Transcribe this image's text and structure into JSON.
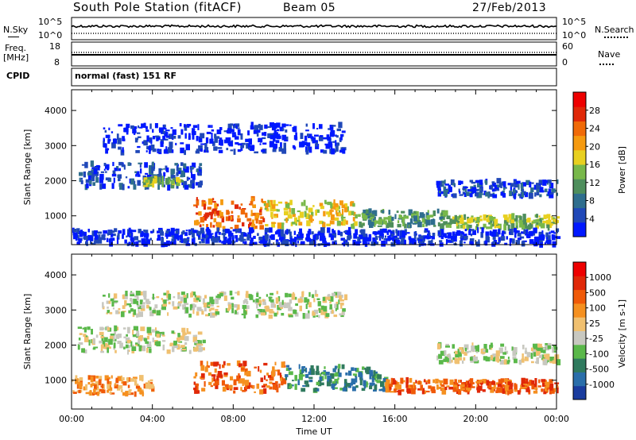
{
  "header": {
    "station": "South Pole Station (fitACF)",
    "beam": "Beam 05",
    "date": "27/Feb/2013"
  },
  "status_panels": {
    "nsky_label": "N.Sky",
    "nsky_ticks": [
      "10^5",
      "10^0"
    ],
    "nsearch_label": "N.Search",
    "nsearch_ticks": [
      "10^5",
      "10^0"
    ],
    "freq_label": "Freq.",
    "freq_unit": "[MHz]",
    "freq_ticks": [
      "18",
      "8"
    ],
    "nave_label": "Nave",
    "nave_ticks": [
      "60",
      "0"
    ],
    "cpid_label": "CPID",
    "cpid_text": "normal (fast) 151 RF"
  },
  "chart_data": [
    {
      "type": "heatmap",
      "panel": "power",
      "ylabel": "Slant Range [km]",
      "yticks": [
        "4000",
        "3000",
        "2000",
        "1000"
      ],
      "ylim": [
        180,
        4590
      ],
      "xlim_hours": [
        0,
        24
      ],
      "colorbar": {
        "label": "Power [dB]",
        "ticks": [
          "28",
          "24",
          "20",
          "16",
          "12",
          "8",
          "4"
        ],
        "range": [
          0,
          31
        ],
        "colors": [
          "#0018ff",
          "#2048b8",
          "#2f6e8e",
          "#4e8e5c",
          "#78b84a",
          "#e8d020",
          "#f59a10",
          "#f06a08",
          "#e02808",
          "#ee0000"
        ]
      },
      "echo_regions": [
        {
          "t0": 0.3,
          "t1": 6.5,
          "r0": 1800,
          "r1": 2500,
          "level": 1
        },
        {
          "t0": 3.5,
          "t1": 5.5,
          "r0": 1850,
          "r1": 2050,
          "level": 4
        },
        {
          "t0": 6.0,
          "t1": 9.5,
          "r0": 650,
          "r1": 1500,
          "level": 7
        },
        {
          "t0": 9.5,
          "t1": 14.0,
          "r0": 700,
          "r1": 1400,
          "level": 5
        },
        {
          "t0": 14.0,
          "t1": 18.5,
          "r0": 700,
          "r1": 1150,
          "level": 3
        },
        {
          "t0": 18.5,
          "t1": 24.0,
          "r0": 650,
          "r1": 1000,
          "level": 4
        },
        {
          "t0": 18.0,
          "t1": 24.0,
          "r0": 1550,
          "r1": 2000,
          "level": 1
        },
        {
          "t0": 1.5,
          "t1": 13.5,
          "r0": 2800,
          "r1": 3600,
          "level": 0
        },
        {
          "t0": 0.0,
          "t1": 24.0,
          "r0": 180,
          "r1": 600,
          "level": 0
        }
      ]
    },
    {
      "type": "heatmap",
      "panel": "velocity",
      "ylabel": "Slant Range [km]",
      "xlabel": "Time UT",
      "xticks": [
        "00:00",
        "04:00",
        "08:00",
        "12:00",
        "16:00",
        "20:00",
        "00:00"
      ],
      "yticks": [
        "4000",
        "3000",
        "2000",
        "1000"
      ],
      "ylim": [
        180,
        4590
      ],
      "xlim_hours": [
        0,
        24
      ],
      "colorbar": {
        "label": "Velocity [m s-1]",
        "ticks": [
          "1000",
          "500",
          "100",
          "25",
          "-25",
          "-100",
          "-500",
          "-1000"
        ],
        "colors": [
          "#1a3c9e",
          "#2a6eaa",
          "#2f7a5e",
          "#5ab84a",
          "#c8c8c0",
          "#f0c070",
          "#f59020",
          "#f05a08",
          "#e02808",
          "#ee0000"
        ]
      },
      "echo_regions": [
        {
          "t0": 0.3,
          "t1": 6.5,
          "r0": 1800,
          "r1": 2500,
          "level": 4
        },
        {
          "t0": 6.0,
          "t1": 10.5,
          "r0": 650,
          "r1": 1500,
          "level": 7
        },
        {
          "t0": 10.5,
          "t1": 15.5,
          "r0": 700,
          "r1": 1400,
          "level": 2
        },
        {
          "t0": 15.5,
          "t1": 24.0,
          "r0": 650,
          "r1": 1000,
          "level": 7
        },
        {
          "t0": 18.0,
          "t1": 24.0,
          "r0": 1500,
          "r1": 2000,
          "level": 4
        },
        {
          "t0": 0.0,
          "t1": 4.0,
          "r0": 600,
          "r1": 1100,
          "level": 6
        },
        {
          "t0": 1.5,
          "t1": 13.5,
          "r0": 2800,
          "r1": 3500,
          "level": 4
        }
      ]
    }
  ]
}
